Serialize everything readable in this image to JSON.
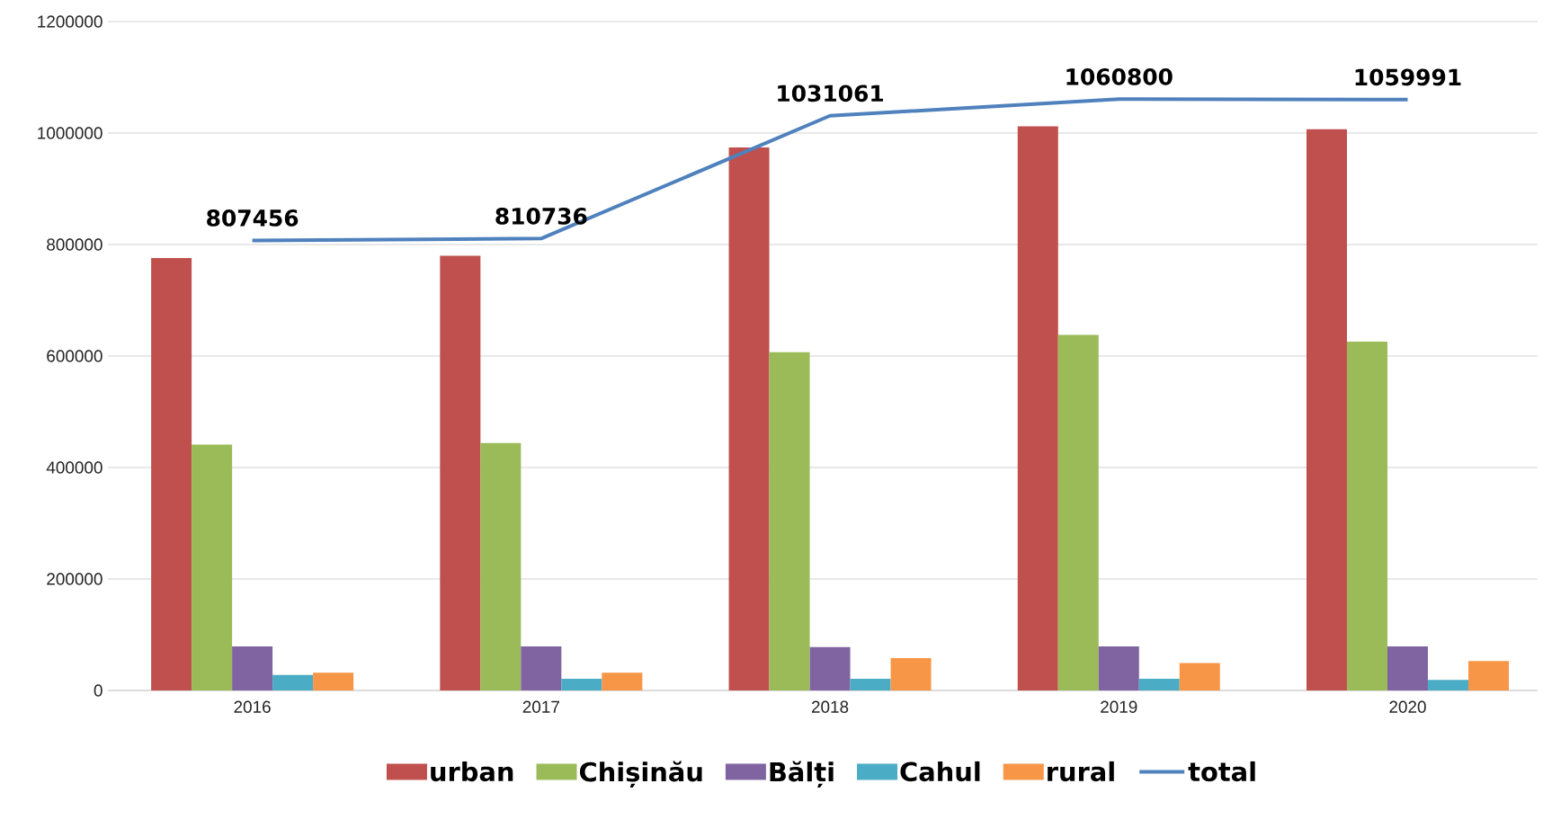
{
  "chart_data": {
    "type": "bar",
    "categories": [
      "2016",
      "2017",
      "2018",
      "2019",
      "2020"
    ],
    "series": [
      {
        "name": "urban",
        "color": "#c0504d",
        "values": [
          776000,
          780000,
          974000,
          1012000,
          1007000
        ]
      },
      {
        "name": "Chișinău",
        "color": "#9bbb59",
        "values": [
          441000,
          444000,
          607000,
          638000,
          626000
        ]
      },
      {
        "name": "Bălți",
        "color": "#8064a2",
        "values": [
          79000,
          79000,
          78000,
          79000,
          79000
        ]
      },
      {
        "name": "Cahul",
        "color": "#4bacc6",
        "values": [
          28000,
          21000,
          21000,
          21000,
          19000
        ]
      },
      {
        "name": "rural",
        "color": "#f79646",
        "values": [
          32000,
          32000,
          58000,
          49000,
          53000
        ]
      },
      {
        "name": "total",
        "type": "line",
        "color": "#4f81bd",
        "values": [
          807456,
          810736,
          1031061,
          1060800,
          1059991
        ],
        "value_labels": [
          "807456",
          "810736",
          "1031061",
          "1060800",
          "1059991"
        ]
      }
    ],
    "ylim": [
      0,
      1200000
    ],
    "yticks": [
      0,
      200000,
      400000,
      600000,
      800000,
      1000000,
      1200000
    ],
    "grid": "y",
    "legend": "bottom"
  }
}
